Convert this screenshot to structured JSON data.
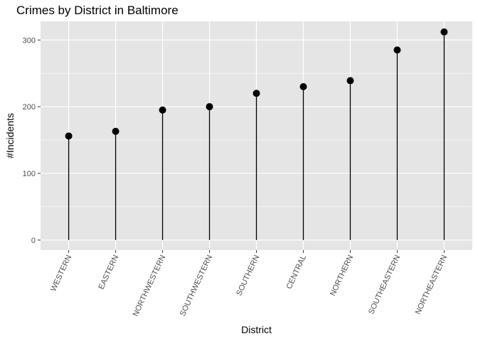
{
  "chart_data": {
    "type": "lollipop",
    "title": "Crimes by District in Baltimore",
    "xlabel": "District",
    "ylabel": "#Incidents",
    "categories": [
      "WESTERN",
      "EASTERN",
      "NORTHWESTERN",
      "SOUTHWESTERN",
      "SOUTHERN",
      "CENTRAL",
      "NORTHERN",
      "SOUTHEASTERN",
      "NORTHEASTERN"
    ],
    "values": [
      156,
      163,
      195,
      200,
      220,
      230,
      239,
      285,
      312
    ],
    "ylim": [
      -15,
      328
    ],
    "yticks": [
      0,
      100,
      200,
      300
    ],
    "grid": true,
    "colors": {
      "panel": "#e5e5e5",
      "grid_major": "#ffffff",
      "mark": "#000000",
      "tick_text": "#4d4d4d"
    }
  }
}
